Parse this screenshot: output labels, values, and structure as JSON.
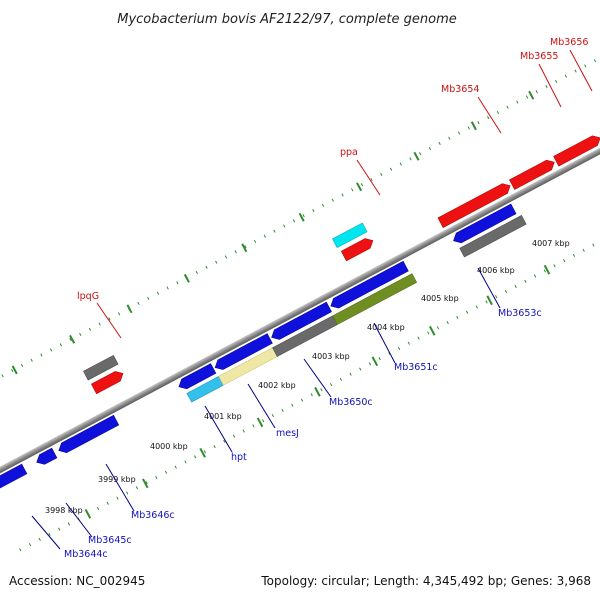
{
  "title": "Mycobacterium bovis AF2122/97, complete genome",
  "footer": {
    "accession": "Accession: NC_002945",
    "summary": "Topology: circular; Length: 4,345,492 bp; Genes: 3,968"
  },
  "colors": {
    "forward_gene": "#ee1111",
    "reverse_gene": "#1010dd",
    "pseudo": "#6a6a6a",
    "rna": "#00e5f0",
    "light_blue": "#33c0ea",
    "pale_yellow": "#eee7a6",
    "olive": "#6e8e22",
    "tick": "#2e8b2e",
    "backbone": "#888888",
    "label_forward": "#cc1111",
    "label_reverse": "#1111bb",
    "leader": "#000088"
  },
  "kbp_ticks": [
    "3998 kbp",
    "3999 kbp",
    "4000 kbp",
    "4001 kbp",
    "4002 kbp",
    "4003 kbp",
    "4004 kbp",
    "4005 kbp",
    "4006 kbp",
    "4007 kbp"
  ],
  "forward_labels": [
    "lpqG",
    "ppa",
    "Mb3654",
    "Mb3655",
    "Mb3656"
  ],
  "reverse_labels": [
    "Mb3644c",
    "Mb3645c",
    "Mb3646c",
    "hpt",
    "mesJ",
    "Mb3650c",
    "Mb3651c",
    "Mb3653c"
  ]
}
